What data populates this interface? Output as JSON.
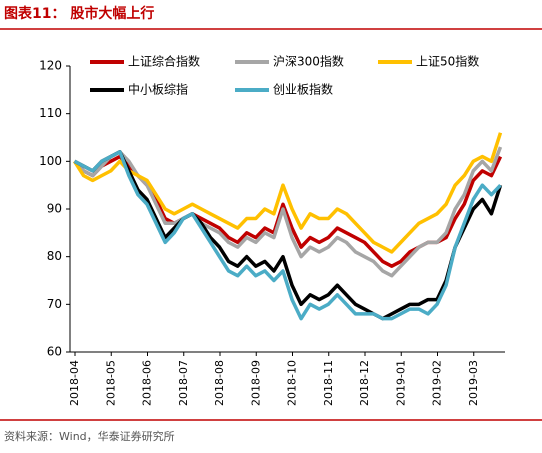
{
  "chart_data": {
    "type": "line",
    "title": "图表11：  股市大幅上行",
    "source": "资料来源：Wind，华泰证券研究所",
    "categories": [
      "2018-04",
      null,
      null,
      null,
      "2018-05",
      null,
      null,
      null,
      "2018-06",
      null,
      null,
      null,
      "2018-07",
      null,
      null,
      null,
      "2018-08",
      null,
      null,
      null,
      "2018-09",
      null,
      null,
      null,
      "2018-10",
      null,
      null,
      null,
      "2018-11",
      null,
      null,
      null,
      "2018-12",
      null,
      null,
      null,
      "2019-01",
      null,
      null,
      null,
      "2019-02",
      null,
      null,
      null,
      "2019-03",
      null,
      null,
      null
    ],
    "series": [
      {
        "name": "上证综合指数",
        "color": "#c00000",
        "values": [
          100,
          98,
          97,
          99,
          100,
          101,
          99,
          97,
          95,
          92,
          88,
          87,
          88,
          89,
          88,
          87,
          86,
          84,
          83,
          85,
          84,
          86,
          85,
          91,
          86,
          82,
          84,
          83,
          84,
          86,
          85,
          84,
          83,
          81,
          79,
          78,
          79,
          81,
          82,
          83,
          83,
          84,
          88,
          91,
          96,
          98,
          97,
          101
        ]
      },
      {
        "name": "沪深300指数",
        "color": "#a6a6a6",
        "values": [
          100,
          98,
          97,
          99,
          101,
          102,
          100,
          97,
          95,
          91,
          87,
          87,
          88,
          89,
          87,
          86,
          85,
          83,
          82,
          84,
          83,
          85,
          84,
          90,
          84,
          80,
          82,
          81,
          82,
          84,
          83,
          81,
          80,
          79,
          77,
          76,
          78,
          80,
          82,
          83,
          83,
          85,
          90,
          93,
          98,
          100,
          98,
          103
        ]
      },
      {
        "name": "上证50指数",
        "color": "#ffc000",
        "values": [
          100,
          97,
          96,
          97,
          98,
          100,
          98,
          97,
          96,
          93,
          90,
          89,
          90,
          91,
          90,
          89,
          88,
          87,
          86,
          88,
          88,
          90,
          89,
          95,
          90,
          86,
          89,
          88,
          88,
          90,
          89,
          87,
          85,
          83,
          82,
          81,
          83,
          85,
          87,
          88,
          89,
          91,
          95,
          97,
          100,
          101,
          100,
          106
        ]
      },
      {
        "name": "中小板综指",
        "color": "#000000",
        "values": [
          100,
          99,
          98,
          100,
          101,
          102,
          98,
          94,
          92,
          88,
          84,
          86,
          88,
          89,
          87,
          84,
          82,
          79,
          78,
          80,
          78,
          79,
          77,
          80,
          74,
          70,
          72,
          71,
          72,
          74,
          72,
          70,
          69,
          68,
          67,
          68,
          69,
          70,
          70,
          71,
          71,
          75,
          82,
          86,
          90,
          92,
          89,
          95
        ]
      },
      {
        "name": "创业板指数",
        "color": "#4bacc6",
        "values": [
          100,
          99,
          98,
          100,
          101,
          102,
          97,
          93,
          91,
          87,
          83,
          85,
          88,
          89,
          86,
          83,
          80,
          77,
          76,
          78,
          76,
          77,
          75,
          77,
          71,
          67,
          70,
          69,
          70,
          72,
          70,
          68,
          68,
          68,
          67,
          67,
          68,
          69,
          69,
          68,
          70,
          74,
          82,
          87,
          92,
          95,
          93,
          95
        ]
      }
    ],
    "ylim": [
      60,
      120
    ],
    "yticks": [
      60,
      70,
      80,
      90,
      100,
      110,
      120
    ],
    "grid": false
  }
}
